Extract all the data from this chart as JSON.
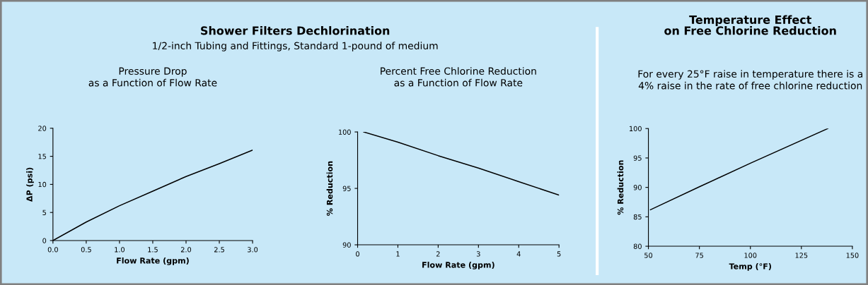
{
  "chart_data": [
    {
      "type": "line",
      "title": "Pressure Drop\nas a Function of Flow Rate",
      "annotations": [
        "Shower Filters Dechlorination",
        "1/2-inch Tubing and Fittings, Standard 1-pound of medium"
      ],
      "xlabel": "Flow Rate (gpm)",
      "ylabel": "ΔP (psi)",
      "x": [
        0,
        0.5,
        1.0,
        1.5,
        2.0,
        2.5,
        3.0
      ],
      "series": [
        {
          "color": "#000000",
          "values": [
            0,
            3.3,
            6.2,
            8.8,
            11.4,
            13.7,
            16.1
          ]
        }
      ],
      "xlim": [
        0,
        3.0
      ],
      "ylim": [
        0,
        20
      ],
      "xticks": [
        {
          "value": 0,
          "label": "0.0"
        },
        0.5,
        {
          "value": 1,
          "label": "1.0"
        },
        1.5,
        {
          "value": 2,
          "label": "2.0"
        },
        2.5,
        {
          "value": 3,
          "label": "3.0"
        }
      ],
      "yticks": [
        0,
        5,
        10,
        15,
        20
      ],
      "grid": false,
      "legend": false,
      "marker": "none",
      "line_style": "solid"
    },
    {
      "type": "line",
      "title": "Percent Free Chlorine Reduction\nas a Function of Flow Rate",
      "xlabel": "Flow Rate (gpm)",
      "ylabel": "% Reduction",
      "x": [
        0.15,
        1,
        2,
        3,
        4,
        5
      ],
      "series": [
        {
          "color": "#000000",
          "values": [
            100,
            99.1,
            97.9,
            96.8,
            95.6,
            94.4
          ]
        }
      ],
      "xlim": [
        0,
        5
      ],
      "ylim": [
        90,
        100
      ],
      "xticks": [
        0,
        1,
        2,
        3,
        4,
        5
      ],
      "yticks": [
        90,
        95,
        100
      ],
      "grid": false,
      "legend": false,
      "marker": "none",
      "line_style": "solid"
    },
    {
      "type": "line",
      "title": "Temperature Effect\non Free Chlorine Reduction",
      "subtitle": "For every 25°F raise in temperature there is a\n4% raise in the rate of free chlorine reduction",
      "xlabel": "Temp (°F)",
      "ylabel": "% Reduction",
      "x": [
        51,
        75,
        100,
        138
      ],
      "series": [
        {
          "color": "#000000",
          "values": [
            86.2,
            90.1,
            94.1,
            100
          ]
        }
      ],
      "xlim": [
        50,
        150
      ],
      "ylim": [
        80,
        100
      ],
      "xticks": [
        50,
        75,
        100,
        125,
        150
      ],
      "yticks": [
        80,
        85,
        90,
        95,
        100
      ],
      "grid": false,
      "legend": false,
      "marker": "none",
      "line_style": "solid"
    }
  ]
}
